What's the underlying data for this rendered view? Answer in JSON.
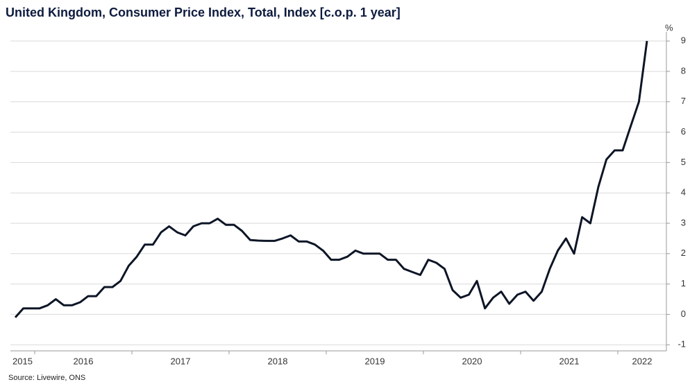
{
  "chart_data": {
    "type": "line",
    "title": "United Kingdom, Consumer Price Index, Total, Index [c.o.p. 1 year]",
    "y_unit": "%",
    "source": "Source: Livewire, ONS",
    "x": [
      2015.8,
      2015.883,
      2015.967,
      2016.05,
      2016.133,
      2016.217,
      2016.3,
      2016.383,
      2016.467,
      2016.55,
      2016.633,
      2016.717,
      2016.8,
      2016.883,
      2016.967,
      2017.05,
      2017.133,
      2017.217,
      2017.3,
      2017.383,
      2017.467,
      2017.55,
      2017.633,
      2017.717,
      2017.8,
      2017.883,
      2017.967,
      2018.05,
      2018.133,
      2018.217,
      2018.3,
      2018.383,
      2018.467,
      2018.55,
      2018.633,
      2018.717,
      2018.8,
      2018.883,
      2018.967,
      2019.05,
      2019.133,
      2019.217,
      2019.3,
      2019.383,
      2019.467,
      2019.55,
      2019.633,
      2019.717,
      2019.8,
      2019.883,
      2019.967,
      2020.05,
      2020.133,
      2020.217,
      2020.3,
      2020.383,
      2020.467,
      2020.55,
      2020.633,
      2020.717,
      2020.8,
      2020.883,
      2020.967,
      2021.05,
      2021.133,
      2021.217,
      2021.3,
      2021.383,
      2021.467,
      2021.55,
      2021.633,
      2021.717,
      2021.8,
      2021.883,
      2021.967,
      2022.05,
      2022.133,
      2022.217,
      2022.3
    ],
    "series": [
      {
        "name": "CPI",
        "color": "#0d1526",
        "values": [
          -0.1,
          0.2,
          0.2,
          0.2,
          0.3,
          0.5,
          0.3,
          0.3,
          0.4,
          0.6,
          0.6,
          0.9,
          0.9,
          1.1,
          1.6,
          1.9,
          2.3,
          2.3,
          2.7,
          2.9,
          2.7,
          2.6,
          2.9,
          3.0,
          3.0,
          3.15,
          2.95,
          2.95,
          2.75,
          2.45,
          2.43,
          2.42,
          2.42,
          2.5,
          2.6,
          2.4,
          2.4,
          2.3,
          2.1,
          1.8,
          1.8,
          1.9,
          2.1,
          2.0,
          2.0,
          2.0,
          1.8,
          1.8,
          1.5,
          1.4,
          1.3,
          1.8,
          1.7,
          1.5,
          0.8,
          0.55,
          0.65,
          1.1,
          0.2,
          0.55,
          0.75,
          0.35,
          0.65,
          0.75,
          0.45,
          0.75,
          1.5,
          2.1,
          2.5,
          2.0,
          3.2,
          3.0,
          4.2,
          5.1,
          5.4,
          5.4,
          6.2,
          7.0,
          9.0
        ]
      }
    ],
    "xlim": [
      2015.75,
      2022.5
    ],
    "xticks": [
      2016,
      2017,
      2018,
      2019,
      2020,
      2021,
      2022
    ],
    "year_labels": [
      2015,
      2016,
      2017,
      2018,
      2019,
      2020,
      2021,
      2022
    ],
    "ylim": [
      -1.2,
      9.3
    ],
    "yticks": [
      -1,
      0,
      1,
      2,
      3,
      4,
      5,
      6,
      7,
      8,
      9
    ],
    "grid": true
  }
}
